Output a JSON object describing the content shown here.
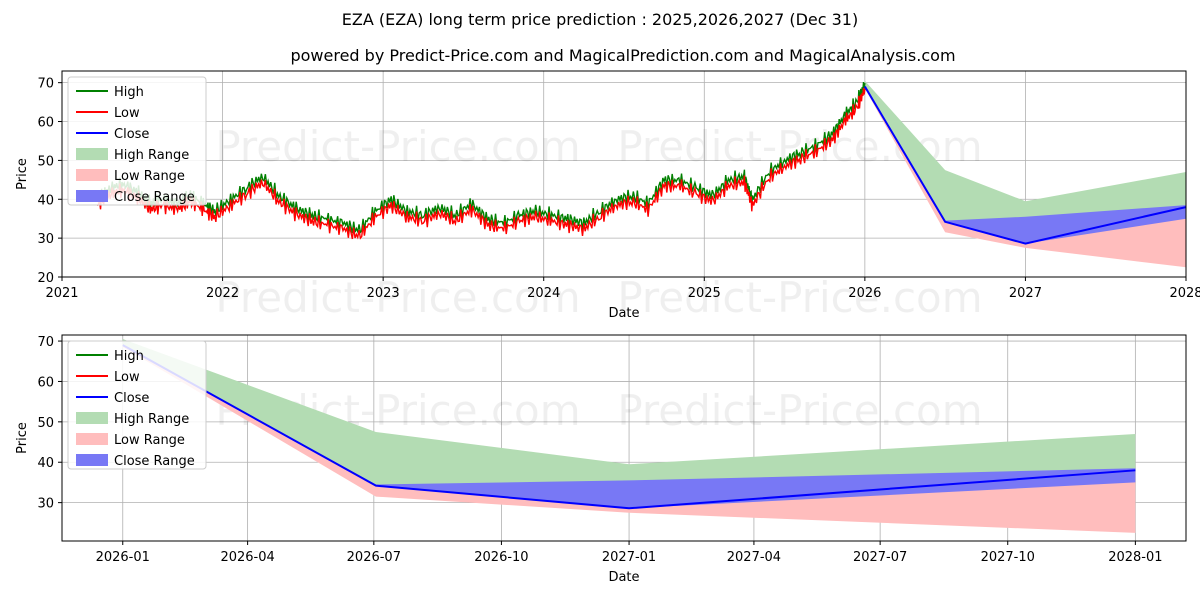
{
  "title": "EZA (EZA) long term price prediction : 2025,2026,2027 (Dec 31)",
  "subtitle": "powered by Predict-Price.com and MagicalPrediction.com and MagicalAnalysis.com",
  "watermark": "Predict-Price.com",
  "colors": {
    "high": "#008000",
    "low": "#ff0000",
    "close": "#0000ff",
    "high_range": "#b3dcb3",
    "low_range": "#ffbdbd",
    "close_range": "#7878f5",
    "grid": "#b0b0b0"
  },
  "chart_data": [
    {
      "type": "line",
      "name": "full-history",
      "xlabel": "Date",
      "ylabel": "Price",
      "xlim": [
        2021.0,
        2028.0
      ],
      "ylim": [
        20,
        73
      ],
      "xticks": [
        {
          "value": 2021,
          "label": "2021"
        },
        {
          "value": 2022,
          "label": "2022"
        },
        {
          "value": 2023,
          "label": "2023"
        },
        {
          "value": 2024,
          "label": "2024"
        },
        {
          "value": 2025,
          "label": "2025"
        },
        {
          "value": 2026,
          "label": "2026"
        },
        {
          "value": 2027,
          "label": "2027"
        },
        {
          "value": 2028,
          "label": "2028"
        }
      ],
      "yticks": [
        20,
        30,
        40,
        50,
        60,
        70
      ],
      "legend": [
        "High",
        "Low",
        "Close",
        "High Range",
        "Low Range",
        "Close Range"
      ],
      "legend_position": "top-left",
      "history": {
        "t": [
          2021.22,
          2021.3,
          2021.38,
          2021.47,
          2021.55,
          2021.63,
          2021.72,
          2021.8,
          2021.88,
          2021.95,
          2022.05,
          2022.15,
          2022.25,
          2022.35,
          2022.45,
          2022.55,
          2022.65,
          2022.75,
          2022.85,
          2022.95,
          2023.05,
          2023.15,
          2023.25,
          2023.35,
          2023.45,
          2023.55,
          2023.65,
          2023.75,
          2023.85,
          2023.95,
          2024.05,
          2024.15,
          2024.25,
          2024.35,
          2024.45,
          2024.55,
          2024.65,
          2024.75,
          2024.85,
          2024.95,
          2025.05,
          2025.15,
          2025.25,
          2025.3,
          2025.4,
          2025.5,
          2025.6,
          2025.7,
          2025.8,
          2025.88,
          2025.95,
          2026.0
        ],
        "close": [
          39,
          42,
          43,
          41,
          38,
          39,
          38,
          40,
          38,
          36,
          39,
          42,
          45,
          40,
          37,
          35,
          34,
          33,
          31,
          36,
          39,
          36,
          35,
          37,
          35,
          38,
          34,
          33,
          35,
          36,
          35,
          34,
          33,
          36,
          39,
          40,
          38,
          44,
          44,
          42,
          40,
          44,
          45,
          39,
          46,
          49,
          51,
          53,
          56,
          61,
          64,
          69
        ]
      },
      "forecast": {
        "t": [
          2026.0,
          2026.5,
          2027.0,
          2028.0
        ],
        "close": [
          69,
          34.2,
          28.6,
          38.0
        ],
        "high_range": {
          "upper": [
            70.5,
            47.5,
            39.5,
            47.0
          ],
          "lower": [
            69,
            34.2,
            28.6,
            38.0
          ]
        },
        "low_range": {
          "upper": [
            69,
            34.2,
            28.6,
            38.0
          ],
          "lower": [
            68.5,
            31.5,
            27.5,
            22.5
          ]
        },
        "close_range": {
          "upper": [
            69,
            34.5,
            35.5,
            38.5
          ],
          "lower": [
            69,
            34.2,
            28.6,
            35.0
          ]
        }
      }
    },
    {
      "type": "line",
      "name": "forecast-zoom",
      "xlabel": "Date",
      "ylabel": "Price",
      "xlim": [
        2025.88,
        2028.1
      ],
      "ylim": [
        20.5,
        71.5
      ],
      "xticks": [
        {
          "value": 2026.0,
          "label": "2026-01"
        },
        {
          "value": 2026.2466,
          "label": "2026-04"
        },
        {
          "value": 2026.4959,
          "label": "2026-07"
        },
        {
          "value": 2026.7479,
          "label": "2026-10"
        },
        {
          "value": 2027.0,
          "label": "2027-01"
        },
        {
          "value": 2027.2466,
          "label": "2027-04"
        },
        {
          "value": 2027.4959,
          "label": "2027-07"
        },
        {
          "value": 2027.7479,
          "label": "2027-10"
        },
        {
          "value": 2028.0,
          "label": "2028-01"
        }
      ],
      "yticks": [
        30,
        40,
        50,
        60,
        70
      ],
      "legend": [
        "High",
        "Low",
        "Close",
        "High Range",
        "Low Range",
        "Close Range"
      ],
      "legend_position": "top-left",
      "forecast": {
        "t": [
          2026.0,
          2026.5,
          2027.0,
          2028.0
        ],
        "close": [
          69,
          34.2,
          28.6,
          38.0
        ],
        "high_range": {
          "upper": [
            70.5,
            47.5,
            39.5,
            47.0
          ],
          "lower": [
            69,
            34.2,
            28.6,
            38.0
          ]
        },
        "low_range": {
          "upper": [
            69,
            34.2,
            28.6,
            38.0
          ],
          "lower": [
            68.5,
            31.5,
            27.5,
            22.5
          ]
        },
        "close_range": {
          "upper": [
            69,
            34.5,
            35.5,
            38.5
          ],
          "lower": [
            69,
            34.2,
            28.6,
            35.0
          ]
        }
      }
    }
  ]
}
